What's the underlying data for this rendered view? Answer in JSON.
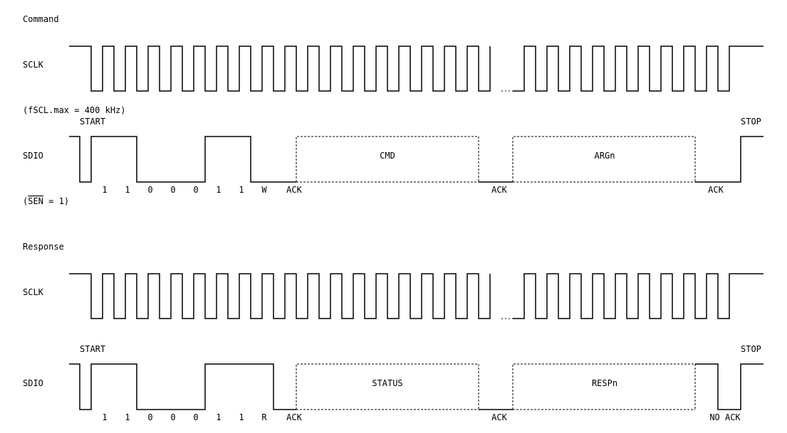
{
  "command": {
    "title": "Command",
    "sclk_label": "SCLK",
    "fscl_note": "(fSCL.max = 400 kHz)",
    "sdio_label": "SDIO",
    "start_label": "START",
    "stop_label": "STOP",
    "bits": [
      "1",
      "1",
      "0",
      "0",
      "0",
      "1",
      "1",
      "W",
      "ACK"
    ],
    "ack_after_block1": "ACK",
    "ack_after_block2": "ACK",
    "block1_label": "CMD",
    "block2_label": "ARGn",
    "sen_note_prefix": "(",
    "sen_note_signal": "SEN",
    "sen_note_suffix": " = 1)"
  },
  "response": {
    "title": "Response",
    "sclk_label": "SCLK",
    "sdio_label": "SDIO",
    "start_label": "START",
    "stop_label": "STOP",
    "bits": [
      "1",
      "1",
      "0",
      "0",
      "0",
      "1",
      "1",
      "R",
      "ACK"
    ],
    "ack_after_block1": "ACK",
    "final_ack": "NO ACK",
    "block1_label": "STATUS",
    "block2_label": "RESPn"
  }
}
